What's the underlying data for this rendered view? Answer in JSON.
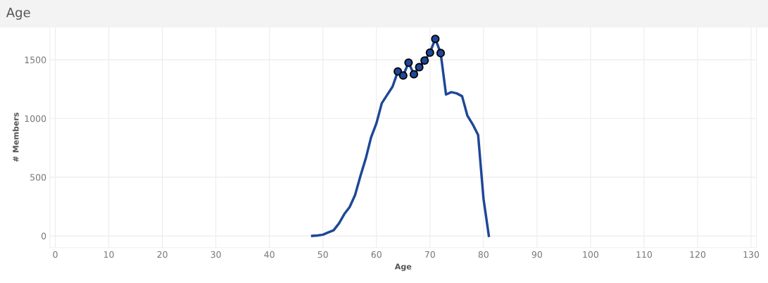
{
  "chart_data": {
    "type": "line",
    "title": "Age",
    "xlabel": "Age",
    "ylabel": "# Members",
    "x": [
      48,
      49,
      50,
      51,
      52,
      53,
      54,
      55,
      56,
      57,
      58,
      59,
      60,
      61,
      62,
      63,
      64,
      65,
      66,
      67,
      68,
      69,
      70,
      71,
      72,
      73,
      74,
      75,
      76,
      77,
      78,
      79,
      80,
      81
    ],
    "series": [
      {
        "color": "#1f4796",
        "marker": "none",
        "line_style": "solid",
        "values": [
          0,
          4,
          10,
          30,
          48,
          106,
          186,
          246,
          347,
          508,
          658,
          839,
          959,
          1130,
          1200,
          1270,
          1400,
          1366,
          1475,
          1376,
          1437,
          1493,
          1561,
          1678,
          1557,
          1204,
          1224,
          1214,
          1190,
          1023,
          949,
          859,
          317,
          0
        ]
      },
      {
        "type": "scatter",
        "color": "#1f4796",
        "marker": "circle",
        "x": [
          64,
          65,
          66,
          67,
          68,
          69,
          70,
          71,
          72
        ],
        "values": [
          1400,
          1366,
          1475,
          1376,
          1437,
          1493,
          1561,
          1678,
          1557
        ]
      }
    ],
    "xlim": [
      -1,
      131
    ],
    "xticks": [
      0,
      10,
      20,
      30,
      40,
      50,
      60,
      70,
      80,
      90,
      100,
      110,
      120,
      130
    ],
    "ylim": [
      -100,
      1780
    ],
    "yticks": [
      0,
      500,
      1000,
      1500
    ],
    "grid": true,
    "legend": false
  }
}
